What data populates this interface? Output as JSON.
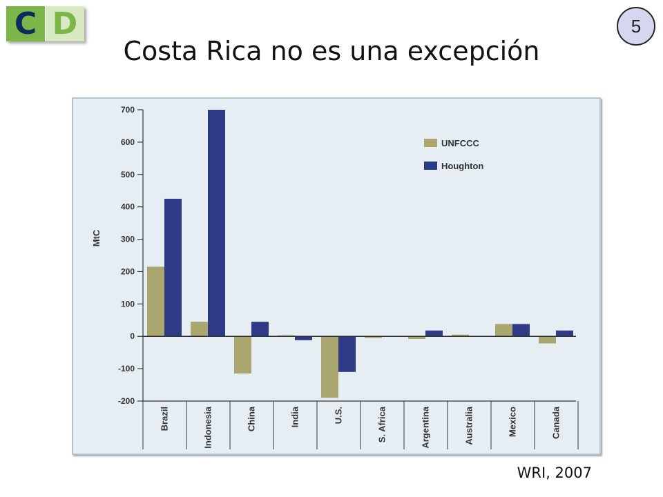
{
  "logo": {
    "left_letter": "C",
    "right_letter": "D"
  },
  "page_number": "5",
  "title": "Costa Rica no es una excepción",
  "source": "WRI, 2007",
  "colors": {
    "UNFCCC": "#a9a66f",
    "Houghton": "#2f3a86",
    "panel_bg": "#e6eef4"
  },
  "chart_data": {
    "type": "bar",
    "title": "",
    "xlabel": "",
    "ylabel": "MtC",
    "ylim": [
      -200,
      700
    ],
    "yticks": [
      "700",
      "600",
      "500",
      "400",
      "300",
      "200",
      "100",
      "0",
      "-100",
      "-200"
    ],
    "grid": false,
    "legend_position": "top-right",
    "categories": [
      "Brazil",
      "Indonesia",
      "China",
      "India",
      "U.S.",
      "S. Africa",
      "Argentina",
      "Australia",
      "Mexico",
      "Canada"
    ],
    "series": [
      {
        "name": "UNFCCC",
        "values": [
          215,
          45,
          -115,
          3,
          -190,
          -5,
          -8,
          5,
          38,
          -22
        ]
      },
      {
        "name": "Houghton",
        "values": [
          425,
          700,
          45,
          -12,
          -110,
          0,
          18,
          0,
          38,
          18
        ]
      }
    ]
  }
}
